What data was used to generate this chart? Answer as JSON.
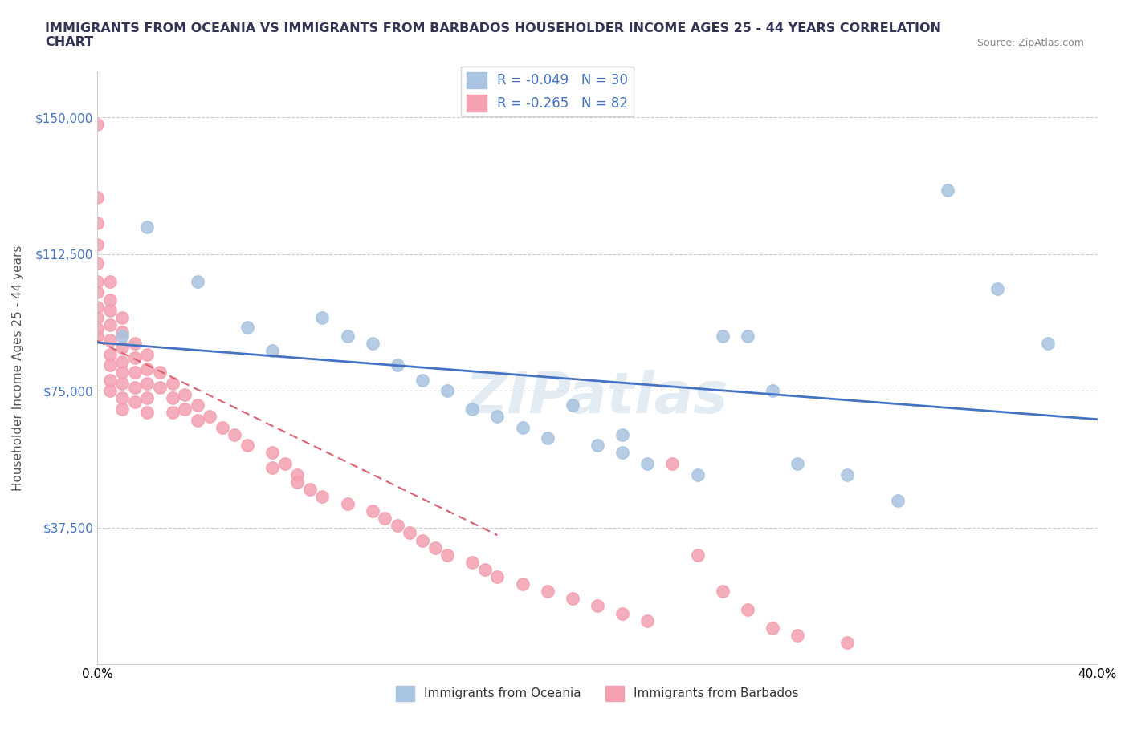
{
  "title": "IMMIGRANTS FROM OCEANIA VS IMMIGRANTS FROM BARBADOS HOUSEHOLDER INCOME AGES 25 - 44 YEARS CORRELATION\nCHART",
  "source_text": "Source: ZipAtlas.com",
  "xlabel": "",
  "ylabel": "Householder Income Ages 25 - 44 years",
  "xlim": [
    0.0,
    0.4
  ],
  "ylim": [
    0,
    162500
  ],
  "yticks": [
    0,
    37500,
    75000,
    112500,
    150000
  ],
  "ytick_labels": [
    "",
    "$37,500",
    "$75,000",
    "$112,500",
    "$150,000"
  ],
  "xticks": [
    0.0,
    0.05,
    0.1,
    0.15,
    0.2,
    0.25,
    0.3,
    0.35,
    0.4
  ],
  "xtick_labels": [
    "0.0%",
    "",
    "",
    "",
    "",
    "",
    "",
    "",
    "40.0%"
  ],
  "watermark": "ZIPatlas",
  "legend_r1": "R = -0.049   N = 30",
  "legend_r2": "R = -0.265   N = 82",
  "color_oceania": "#a8c4e0",
  "color_barbados": "#f4a0b0",
  "trendline_oceania": "#4472c4",
  "trendline_barbados": "#e06070",
  "oceania_scatter_x": [
    0.01,
    0.02,
    0.04,
    0.06,
    0.07,
    0.09,
    0.1,
    0.11,
    0.12,
    0.13,
    0.14,
    0.15,
    0.16,
    0.17,
    0.18,
    0.19,
    0.2,
    0.21,
    0.21,
    0.22,
    0.24,
    0.25,
    0.26,
    0.27,
    0.28,
    0.3,
    0.32,
    0.34,
    0.36,
    0.38
  ],
  "oceania_scatter_y": [
    90000,
    120000,
    105000,
    92500,
    86000,
    95000,
    90000,
    88000,
    82000,
    78000,
    75000,
    70000,
    68000,
    65000,
    62000,
    71000,
    60000,
    63000,
    58000,
    55000,
    52000,
    90000,
    90000,
    75000,
    55000,
    52000,
    45000,
    130000,
    103000,
    88000
  ],
  "barbados_scatter_x": [
    0.0,
    0.0,
    0.0,
    0.0,
    0.0,
    0.0,
    0.0,
    0.0,
    0.0,
    0.0,
    0.0,
    0.005,
    0.005,
    0.005,
    0.005,
    0.005,
    0.005,
    0.005,
    0.005,
    0.005,
    0.01,
    0.01,
    0.01,
    0.01,
    0.01,
    0.01,
    0.01,
    0.01,
    0.015,
    0.015,
    0.015,
    0.015,
    0.015,
    0.02,
    0.02,
    0.02,
    0.02,
    0.02,
    0.025,
    0.025,
    0.03,
    0.03,
    0.03,
    0.035,
    0.035,
    0.04,
    0.04,
    0.045,
    0.05,
    0.055,
    0.06,
    0.07,
    0.07,
    0.075,
    0.08,
    0.08,
    0.085,
    0.09,
    0.1,
    0.11,
    0.115,
    0.12,
    0.125,
    0.13,
    0.135,
    0.14,
    0.15,
    0.155,
    0.16,
    0.17,
    0.18,
    0.19,
    0.2,
    0.21,
    0.22,
    0.23,
    0.24,
    0.25,
    0.26,
    0.27,
    0.28,
    0.3
  ],
  "barbados_scatter_y": [
    148000,
    128000,
    121000,
    115000,
    110000,
    105000,
    102000,
    98000,
    95000,
    92000,
    90000,
    105000,
    100000,
    97000,
    93000,
    89000,
    85000,
    82000,
    78000,
    75000,
    95000,
    91000,
    87000,
    83000,
    80000,
    77000,
    73000,
    70000,
    88000,
    84000,
    80000,
    76000,
    72000,
    85000,
    81000,
    77000,
    73000,
    69000,
    80000,
    76000,
    77000,
    73000,
    69000,
    74000,
    70000,
    71000,
    67000,
    68000,
    65000,
    63000,
    60000,
    58000,
    54000,
    55000,
    52000,
    50000,
    48000,
    46000,
    44000,
    42000,
    40000,
    38000,
    36000,
    34000,
    32000,
    30000,
    28000,
    26000,
    24000,
    22000,
    20000,
    18000,
    16000,
    14000,
    12000,
    55000,
    30000,
    20000,
    15000,
    10000,
    8000,
    6000
  ]
}
